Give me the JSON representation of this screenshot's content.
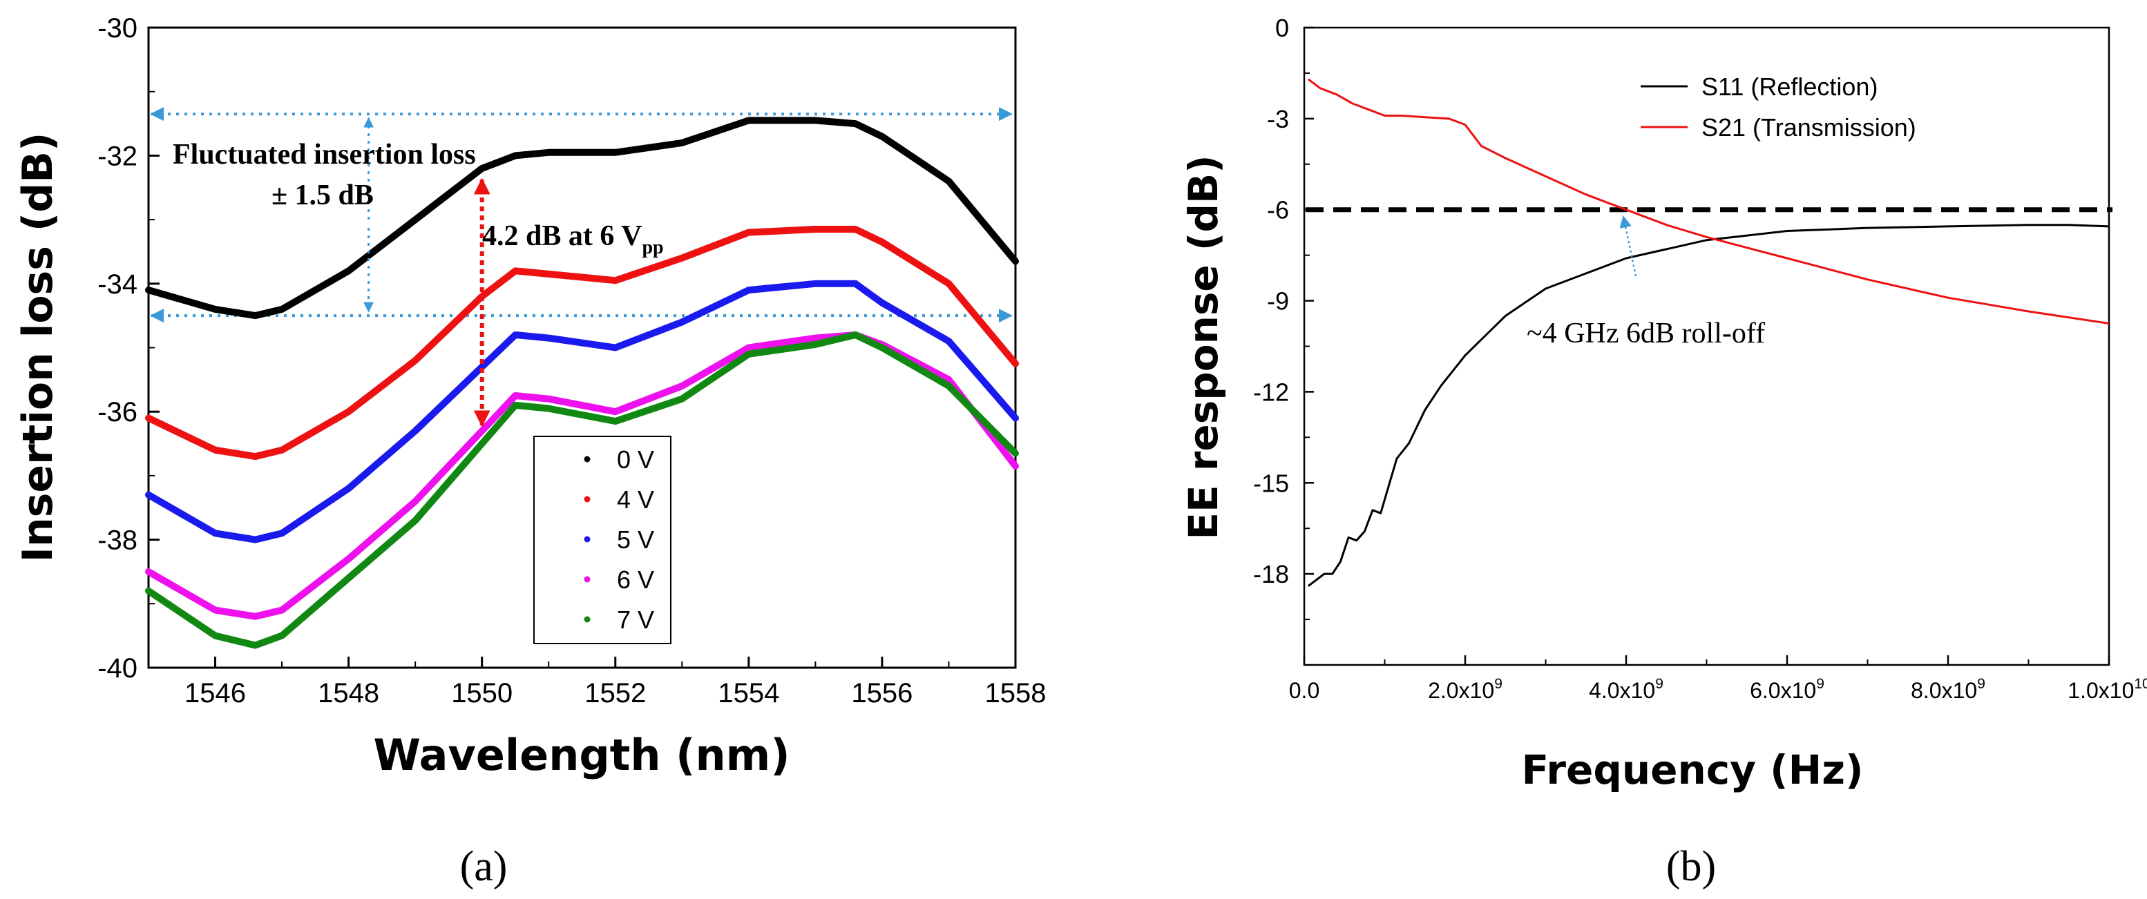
{
  "chart_data": [
    {
      "type": "line",
      "panel_label": "(a)",
      "title": "",
      "xlabel": "Wavelength (nm)",
      "ylabel": "Insertion loss (dB)",
      "xlim": [
        1545,
        1558
      ],
      "ylim": [
        -40,
        -30
      ],
      "xticks": [
        1546,
        1548,
        1550,
        1552,
        1554,
        1556,
        1558
      ],
      "xtick_labels": [
        "1546",
        "1548",
        "1550",
        "1552",
        "1554",
        "1556",
        "1558"
      ],
      "yticks": [
        -40,
        -38,
        -36,
        -34,
        -32,
        -30
      ],
      "ytick_labels": [
        "-40",
        "-38",
        "-36",
        "-34",
        "-32",
        "-30"
      ],
      "x": [
        1545,
        1546,
        1546.6,
        1547,
        1548,
        1549,
        1550,
        1550.5,
        1551,
        1552,
        1553,
        1554,
        1555,
        1555.6,
        1556,
        1557,
        1558
      ],
      "series": [
        {
          "name": "0 V",
          "color": "#000000",
          "values": [
            -34.1,
            -34.4,
            -34.5,
            -34.4,
            -33.8,
            -33.0,
            -32.2,
            -32.0,
            -31.95,
            -31.95,
            -31.8,
            -31.45,
            -31.45,
            -31.5,
            -31.7,
            -32.4,
            -33.65
          ]
        },
        {
          "name": "4 V",
          "color": "#ee1111",
          "values": [
            -36.1,
            -36.6,
            -36.7,
            -36.6,
            -36.0,
            -35.2,
            -34.2,
            -33.8,
            -33.85,
            -33.95,
            -33.6,
            -33.2,
            -33.15,
            -33.15,
            -33.35,
            -34.0,
            -35.25
          ]
        },
        {
          "name": "5 V",
          "color": "#1a1aee",
          "values": [
            -37.3,
            -37.9,
            -38.0,
            -37.9,
            -37.2,
            -36.3,
            -35.3,
            -34.8,
            -34.85,
            -35.0,
            -34.6,
            -34.1,
            -34.0,
            -34.0,
            -34.3,
            -34.9,
            -36.1
          ]
        },
        {
          "name": "6 V",
          "color": "#ee11ee",
          "values": [
            -38.5,
            -39.1,
            -39.2,
            -39.1,
            -38.3,
            -37.4,
            -36.3,
            -35.75,
            -35.8,
            -36.0,
            -35.6,
            -35.0,
            -34.85,
            -34.8,
            -34.95,
            -35.5,
            -36.85
          ]
        },
        {
          "name": "7 V",
          "color": "#118811",
          "values": [
            -38.8,
            -39.5,
            -39.65,
            -39.5,
            -38.6,
            -37.7,
            -36.5,
            -35.9,
            -35.95,
            -36.15,
            -35.8,
            -35.1,
            -34.95,
            -34.8,
            -35.0,
            -35.6,
            -36.65
          ]
        }
      ],
      "legend_position": "bottom-center",
      "annotations": [
        {
          "text": "Fluctuated insertion loss",
          "kind": "label"
        },
        {
          "text": "± 1.5 dB",
          "kind": "label"
        },
        {
          "text": "4.2 dB at 6 V",
          "subscript": "pp",
          "kind": "label"
        }
      ],
      "reference_levels": {
        "upper_db": -31.35,
        "lower_db": -34.5,
        "arrow_x_nm": 1550,
        "arrow_top_db": -32.05,
        "arrow_bottom_db": -36.3
      },
      "colors": {
        "dotted_lines": "#3a9ad9",
        "vertical_arrow": "#ee1111"
      }
    },
    {
      "type": "line",
      "panel_label": "(b)",
      "title": "",
      "xlabel": "Frequency (Hz)",
      "ylabel": "EE response (dB)",
      "xlim": [
        0,
        10000000000
      ],
      "ylim": [
        -21,
        0
      ],
      "xticks": [
        0,
        2000000000,
        4000000000,
        6000000000,
        8000000000,
        10000000000
      ],
      "xtick_labels": [
        "0.0",
        "2.0x10",
        "4.0x10",
        "6.0x10",
        "8.0x10",
        "1.0x10"
      ],
      "xtick_exponents": [
        "",
        "9",
        "9",
        "9",
        "9",
        "10"
      ],
      "yticks": [
        0,
        -3,
        -6,
        -9,
        -12,
        -15,
        -18
      ],
      "ytick_labels": [
        "0",
        "-3",
        "-6",
        "-9",
        "-12",
        "-15",
        "-18"
      ],
      "series": [
        {
          "name": "S11 (Reflection)",
          "color": "#000000",
          "x": [
            50000000,
            150000000,
            250000000,
            350000000,
            450000000,
            550000000,
            650000000,
            750000000,
            850000000,
            950000000,
            1050000000,
            1150000000,
            1300000000,
            1500000000,
            1700000000,
            2000000000,
            2500000000,
            3000000000,
            3500000000,
            4000000000,
            4500000000,
            5000000000,
            6000000000,
            7000000000,
            8000000000,
            9000000000,
            9500000000,
            10000000000
          ],
          "values": [
            -18.4,
            -18.2,
            -18.0,
            -18.0,
            -17.6,
            -16.8,
            -16.9,
            -16.6,
            -15.9,
            -16.0,
            -15.1,
            -14.2,
            -13.7,
            -12.6,
            -11.8,
            -10.8,
            -9.5,
            -8.6,
            -8.1,
            -7.6,
            -7.3,
            -7.0,
            -6.7,
            -6.6,
            -6.55,
            -6.5,
            -6.5,
            -6.55
          ]
        },
        {
          "name": "S21 (Transmission)",
          "color": "#ee1111",
          "x": [
            50000000,
            200000000,
            400000000,
            600000000,
            800000000,
            1000000000,
            1200000000,
            1500000000,
            1800000000,
            2000000000,
            2200000000,
            2500000000,
            3000000000,
            3500000000,
            4000000000,
            4500000000,
            5000000000,
            5500000000,
            6000000000,
            7000000000,
            8000000000,
            9000000000,
            10000000000
          ],
          "values": [
            -1.7,
            -2.0,
            -2.2,
            -2.5,
            -2.7,
            -2.9,
            -2.9,
            -2.95,
            -3.0,
            -3.2,
            -3.9,
            -4.3,
            -4.9,
            -5.5,
            -6.0,
            -6.5,
            -6.9,
            -7.25,
            -7.6,
            -8.3,
            -8.9,
            -9.35,
            -9.75
          ]
        }
      ],
      "reference_line": {
        "y": -6,
        "style": "dashed",
        "color": "#000000"
      },
      "annotations": [
        {
          "text": "~4 GHz 6dB roll-off",
          "x": 4000000000,
          "y": -6,
          "arrow_color": "#3a9ad9"
        }
      ],
      "legend_position": "top-right"
    }
  ]
}
